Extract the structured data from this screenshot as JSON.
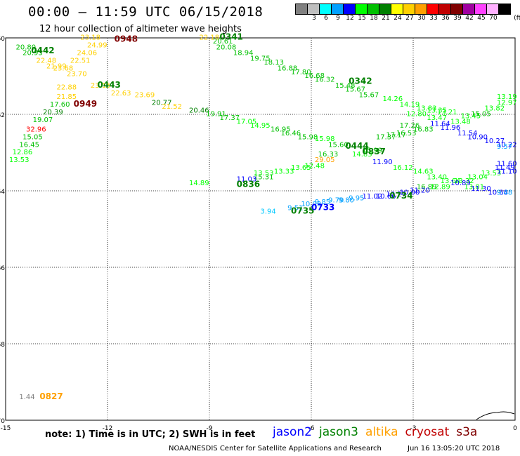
{
  "title": "00:00 – 11:59 UTC 06/15/2018",
  "subtitle": "12 hour collection of altimeter wave heights",
  "color_scale": {
    "unit_label": "(ft)",
    "bins": [
      {
        "label": "",
        "color": "#808080"
      },
      {
        "label": "3",
        "color": "#bfbfbf"
      },
      {
        "label": "6",
        "color": "#00ffff"
      },
      {
        "label": "9",
        "color": "#00a0ff"
      },
      {
        "label": "12",
        "color": "#0000ff"
      },
      {
        "label": "15",
        "color": "#00ff00"
      },
      {
        "label": "18",
        "color": "#00c000"
      },
      {
        "label": "21",
        "color": "#008000"
      },
      {
        "label": "24",
        "color": "#ffff00"
      },
      {
        "label": "27",
        "color": "#ffd000"
      },
      {
        "label": "30",
        "color": "#ffa000"
      },
      {
        "label": "33",
        "color": "#ff0000"
      },
      {
        "label": "36",
        "color": "#c00000"
      },
      {
        "label": "39",
        "color": "#800000"
      },
      {
        "label": "42",
        "color": "#a000a0"
      },
      {
        "label": "45",
        "color": "#ff40ff"
      },
      {
        "label": "70",
        "color": "#ffb0ff"
      },
      {
        "label": "",
        "color": "#000000"
      }
    ]
  },
  "map": {
    "lon_range": [
      -15,
      0
    ],
    "lat_range": [
      -70,
      -60
    ],
    "x_ticks": [
      -15,
      -12,
      -9,
      -6,
      -3,
      0
    ],
    "y_ticks": [
      -60,
      -62,
      -64,
      -66,
      -68,
      -70
    ],
    "grid": "dotted"
  },
  "chart_data": {
    "type": "scatter",
    "units": "ft",
    "points": [
      {
        "lon": -14.7,
        "lat": -60.3,
        "text": "20.80",
        "color": "#00c000"
      },
      {
        "lon": -14.5,
        "lat": -60.45,
        "text": "20.93",
        "color": "#00c000"
      },
      {
        "lon": -14.1,
        "lat": -60.65,
        "text": "22.48",
        "color": "#ffd000"
      },
      {
        "lon": -13.8,
        "lat": -60.8,
        "text": "21.99",
        "color": "#ffd000"
      },
      {
        "lon": -13.6,
        "lat": -60.85,
        "text": "23.68",
        "color": "#ffd000"
      },
      {
        "lon": -13.2,
        "lat": -61.0,
        "text": "23.70",
        "color": "#ffd000"
      },
      {
        "lon": -13.5,
        "lat": -61.35,
        "text": "22.88",
        "color": "#ffd000"
      },
      {
        "lon": -13.5,
        "lat": -61.6,
        "text": "21.85",
        "color": "#ffd000"
      },
      {
        "lon": -13.7,
        "lat": -61.8,
        "text": "17.60",
        "color": "#00c000"
      },
      {
        "lon": -13.9,
        "lat": -62.0,
        "text": "20.39",
        "color": "#008000"
      },
      {
        "lon": -14.2,
        "lat": -62.2,
        "text": "19.07",
        "color": "#00c000"
      },
      {
        "lon": -14.4,
        "lat": -62.45,
        "text": "32.96",
        "color": "#ff0000"
      },
      {
        "lon": -14.5,
        "lat": -62.65,
        "text": "15.05",
        "color": "#00c000"
      },
      {
        "lon": -14.6,
        "lat": -62.85,
        "text": "16.45",
        "color": "#00c000"
      },
      {
        "lon": -14.8,
        "lat": -63.05,
        "text": "12.86",
        "color": "#00ff00"
      },
      {
        "lon": -14.9,
        "lat": -63.25,
        "text": "13.53",
        "color": "#00ff00"
      },
      {
        "lon": -12.8,
        "lat": -60.05,
        "text": "23.18",
        "color": "#ffd000"
      },
      {
        "lon": -12.6,
        "lat": -60.25,
        "text": "24.99",
        "color": "#ffd000"
      },
      {
        "lon": -12.9,
        "lat": -60.45,
        "text": "24.06",
        "color": "#ffd000"
      },
      {
        "lon": -13.1,
        "lat": -60.65,
        "text": "22.51",
        "color": "#ffd000"
      },
      {
        "lon": -12.5,
        "lat": -61.3,
        "text": "23.15",
        "color": "#ffd000"
      },
      {
        "lon": -11.9,
        "lat": -61.5,
        "text": "22.63",
        "color": "#ffd000"
      },
      {
        "lon": -11.2,
        "lat": -61.55,
        "text": "23.69",
        "color": "#ffd000"
      },
      {
        "lon": -10.7,
        "lat": -61.75,
        "text": "20.77",
        "color": "#008000"
      },
      {
        "lon": -10.4,
        "lat": -61.85,
        "text": "21.52",
        "color": "#ffd000"
      },
      {
        "lon": -9.6,
        "lat": -61.95,
        "text": "20.46",
        "color": "#008000"
      },
      {
        "lon": -9.1,
        "lat": -62.05,
        "text": "19.91",
        "color": "#00c000"
      },
      {
        "lon": -8.7,
        "lat": -62.15,
        "text": "17.37",
        "color": "#00c000"
      },
      {
        "lon": -8.2,
        "lat": -62.25,
        "text": "17.05",
        "color": "#00ff00"
      },
      {
        "lon": -7.8,
        "lat": -62.35,
        "text": "14.95",
        "color": "#00ff00"
      },
      {
        "lon": -7.2,
        "lat": -62.45,
        "text": "16.95",
        "color": "#00c000"
      },
      {
        "lon": -6.9,
        "lat": -62.55,
        "text": "16.46",
        "color": "#00c000"
      },
      {
        "lon": -6.4,
        "lat": -62.65,
        "text": "15.98",
        "color": "#00c000"
      },
      {
        "lon": -5.9,
        "lat": -62.7,
        "text": "15.98",
        "color": "#00ff00"
      },
      {
        "lon": -5.5,
        "lat": -62.85,
        "text": "15.60",
        "color": "#00c000"
      },
      {
        "lon": -9.3,
        "lat": -60.05,
        "text": "22.18",
        "color": "#ffd000"
      },
      {
        "lon": -8.9,
        "lat": -60.15,
        "text": "20.61",
        "color": "#00c000"
      },
      {
        "lon": -8.8,
        "lat": -60.3,
        "text": "20.08",
        "color": "#00c000"
      },
      {
        "lon": -8.3,
        "lat": -60.45,
        "text": "18.94",
        "color": "#00c000"
      },
      {
        "lon": -7.8,
        "lat": -60.6,
        "text": "19.75",
        "color": "#00c000"
      },
      {
        "lon": -7.4,
        "lat": -60.7,
        "text": "18.13",
        "color": "#00c000"
      },
      {
        "lon": -7.0,
        "lat": -60.85,
        "text": "16.88",
        "color": "#00c000"
      },
      {
        "lon": -6.6,
        "lat": -60.95,
        "text": "17.80",
        "color": "#00c000"
      },
      {
        "lon": -6.2,
        "lat": -61.05,
        "text": "16.68",
        "color": "#00c000"
      },
      {
        "lon": -5.9,
        "lat": -61.15,
        "text": "16.32",
        "color": "#00c000"
      },
      {
        "lon": -5.3,
        "lat": -61.3,
        "text": "15.48",
        "color": "#00c000"
      },
      {
        "lon": -5.0,
        "lat": -61.4,
        "text": "15.67",
        "color": "#00c000"
      },
      {
        "lon": -4.6,
        "lat": -61.55,
        "text": "15.67",
        "color": "#00c000"
      },
      {
        "lon": -3.9,
        "lat": -61.65,
        "text": "14.26",
        "color": "#00ff00"
      },
      {
        "lon": -3.4,
        "lat": -61.8,
        "text": "14.19",
        "color": "#00ff00"
      },
      {
        "lon": -2.9,
        "lat": -61.9,
        "text": "13.83",
        "color": "#00ff00"
      },
      {
        "lon": -2.6,
        "lat": -61.95,
        "text": "13.35",
        "color": "#00ff00"
      },
      {
        "lon": -2.3,
        "lat": -62.0,
        "text": "13.21",
        "color": "#00ff00"
      },
      {
        "lon": -3.2,
        "lat": -62.05,
        "text": "12.80",
        "color": "#00ff00"
      },
      {
        "lon": -2.6,
        "lat": -62.15,
        "text": "13.47",
        "color": "#00ff00"
      },
      {
        "lon": -1.9,
        "lat": -62.25,
        "text": "13.48",
        "color": "#00ff00"
      },
      {
        "lon": -1.6,
        "lat": -62.1,
        "text": "13.45",
        "color": "#00ff00"
      },
      {
        "lon": -1.3,
        "lat": -62.05,
        "text": "15.05",
        "color": "#00c000"
      },
      {
        "lon": -0.9,
        "lat": -61.9,
        "text": "13.82",
        "color": "#00ff00"
      },
      {
        "lon": -0.5,
        "lat": -61.75,
        "text": "12.97",
        "color": "#00ff00"
      },
      {
        "lon": -0.2,
        "lat": -61.6,
        "text": "13.19",
        "color": "#00ff00"
      },
      {
        "lon": -3.4,
        "lat": -62.35,
        "text": "17.26",
        "color": "#00c000"
      },
      {
        "lon": -3.0,
        "lat": -62.45,
        "text": "16.83",
        "color": "#00c000"
      },
      {
        "lon": -4.1,
        "lat": -62.65,
        "text": "17.37",
        "color": "#00c000"
      },
      {
        "lon": -3.8,
        "lat": -62.6,
        "text": "17.17",
        "color": "#00c000"
      },
      {
        "lon": -3.5,
        "lat": -62.55,
        "text": "16.53",
        "color": "#00c000"
      },
      {
        "lon": -2.5,
        "lat": -62.3,
        "text": "11.64",
        "color": "#0000ff"
      },
      {
        "lon": -2.2,
        "lat": -62.4,
        "text": "11.96",
        "color": "#0000ff"
      },
      {
        "lon": -1.7,
        "lat": -62.55,
        "text": "11.54",
        "color": "#0000ff"
      },
      {
        "lon": -1.4,
        "lat": -62.65,
        "text": "10.90",
        "color": "#0000ff"
      },
      {
        "lon": -0.9,
        "lat": -62.75,
        "text": "10.27",
        "color": "#0000ff"
      },
      {
        "lon": -0.5,
        "lat": -62.85,
        "text": "10.22",
        "color": "#0000ff"
      },
      {
        "lon": -0.1,
        "lat": -62.9,
        "text": "9.57",
        "color": "#00a0ff"
      },
      {
        "lon": -4.5,
        "lat": -63.0,
        "text": "15.99",
        "color": "#00c000"
      },
      {
        "lon": -4.8,
        "lat": -63.1,
        "text": "14.83",
        "color": "#00ff00"
      },
      {
        "lon": -5.8,
        "lat": -63.1,
        "text": "16.33",
        "color": "#00c000"
      },
      {
        "lon": -4.2,
        "lat": -63.3,
        "text": "11.90",
        "color": "#0000ff"
      },
      {
        "lon": -3.6,
        "lat": -63.45,
        "text": "16.12",
        "color": "#00ff00"
      },
      {
        "lon": -3.0,
        "lat": -63.55,
        "text": "14.63",
        "color": "#00ff00"
      },
      {
        "lon": -2.6,
        "lat": -63.7,
        "text": "13.40",
        "color": "#00ff00"
      },
      {
        "lon": -2.2,
        "lat": -63.8,
        "text": "13.64",
        "color": "#00ff00"
      },
      {
        "lon": -1.8,
        "lat": -63.8,
        "text": "13.32",
        "color": "#00ff00"
      },
      {
        "lon": -1.4,
        "lat": -63.7,
        "text": "13.04",
        "color": "#00ff00"
      },
      {
        "lon": -1.0,
        "lat": -63.6,
        "text": "13.53",
        "color": "#00ff00"
      },
      {
        "lon": -0.6,
        "lat": -63.45,
        "text": "11.49",
        "color": "#0000ff"
      },
      {
        "lon": -0.2,
        "lat": -63.35,
        "text": "11.60",
        "color": "#0000ff"
      },
      {
        "lon": -0.1,
        "lat": -63.55,
        "text": "11.10",
        "color": "#0000ff"
      },
      {
        "lon": -2.9,
        "lat": -63.95,
        "text": "16.89",
        "color": "#00c000"
      },
      {
        "lon": -2.5,
        "lat": -63.95,
        "text": "12.89",
        "color": "#00ff00"
      },
      {
        "lon": -1.9,
        "lat": -63.85,
        "text": "10.89",
        "color": "#0000ff"
      },
      {
        "lon": -1.5,
        "lat": -63.95,
        "text": "13.01",
        "color": "#00ff00"
      },
      {
        "lon": -1.3,
        "lat": -64.0,
        "text": "11.30",
        "color": "#0000ff"
      },
      {
        "lon": -0.8,
        "lat": -64.1,
        "text": "10.88",
        "color": "#0000ff"
      },
      {
        "lon": -0.3,
        "lat": -64.1,
        "text": "9.48",
        "color": "#00a0ff"
      },
      {
        "lon": -7.1,
        "lat": -63.55,
        "text": "13.33",
        "color": "#00ff00"
      },
      {
        "lon": -6.6,
        "lat": -63.45,
        "text": "13.65",
        "color": "#00ff00"
      },
      {
        "lon": -6.2,
        "lat": -63.4,
        "text": "12.48",
        "color": "#00ff00"
      },
      {
        "lon": -5.9,
        "lat": -63.25,
        "text": "29.05",
        "color": "#ffa000"
      },
      {
        "lon": -7.7,
        "lat": -63.7,
        "text": "15.31",
        "color": "#00c000"
      },
      {
        "lon": -8.2,
        "lat": -63.75,
        "text": "11.03",
        "color": "#0000ff"
      },
      {
        "lon": -9.6,
        "lat": -63.85,
        "text": "14.89",
        "color": "#00ff00"
      },
      {
        "lon": -7.7,
        "lat": -63.6,
        "text": "13.53",
        "color": "#00ff00"
      },
      {
        "lon": -7.5,
        "lat": -64.6,
        "text": "3.94",
        "color": "#00c8ff"
      },
      {
        "lon": -6.7,
        "lat": -64.5,
        "text": "9.51",
        "color": "#00a0ff"
      },
      {
        "lon": -6.3,
        "lat": -64.4,
        "text": "10.03",
        "color": "#00a0ff"
      },
      {
        "lon": -5.9,
        "lat": -64.35,
        "text": "9.85",
        "color": "#00a0ff"
      },
      {
        "lon": -5.5,
        "lat": -64.3,
        "text": "9.79",
        "color": "#00a0ff"
      },
      {
        "lon": -5.2,
        "lat": -64.3,
        "text": "9.80",
        "color": "#00a0ff"
      },
      {
        "lon": -4.9,
        "lat": -64.25,
        "text": "9.95",
        "color": "#00a0ff"
      },
      {
        "lon": -4.5,
        "lat": -64.2,
        "text": "11.02",
        "color": "#0000ff"
      },
      {
        "lon": -4.1,
        "lat": -64.2,
        "text": "10.66",
        "color": "#0000ff"
      },
      {
        "lon": -3.8,
        "lat": -64.15,
        "text": "10.27",
        "color": "#0000ff"
      },
      {
        "lon": -3.4,
        "lat": -64.1,
        "text": "10.00",
        "color": "#0000ff"
      },
      {
        "lon": -3.1,
        "lat": -64.05,
        "text": "11.20",
        "color": "#0000ff"
      },
      {
        "lon": -14.6,
        "lat": -69.45,
        "text": "1.44",
        "color": "#808080"
      }
    ],
    "time_labels": [
      {
        "lon": -14.25,
        "lat": -60.4,
        "text": "0442",
        "color": "#008000"
      },
      {
        "lon": -11.8,
        "lat": -60.1,
        "text": "0948",
        "color": "#800000"
      },
      {
        "lon": -8.7,
        "lat": -60.05,
        "text": "0341",
        "color": "#008000"
      },
      {
        "lon": -12.3,
        "lat": -61.3,
        "text": "0443",
        "color": "#008000"
      },
      {
        "lon": -13.0,
        "lat": -61.8,
        "text": "0949",
        "color": "#800000"
      },
      {
        "lon": -4.9,
        "lat": -61.2,
        "text": "0342",
        "color": "#008000"
      },
      {
        "lon": -5.0,
        "lat": -62.9,
        "text": "0444",
        "color": "#008000"
      },
      {
        "lon": -4.5,
        "lat": -63.05,
        "text": "0837",
        "color": "#008000"
      },
      {
        "lon": -8.2,
        "lat": -63.9,
        "text": "0836",
        "color": "#008000"
      },
      {
        "lon": -6.6,
        "lat": -64.6,
        "text": "0735",
        "color": "#008000"
      },
      {
        "lon": -6.0,
        "lat": -64.5,
        "text": "0733",
        "color": "#0000ff"
      },
      {
        "lon": -3.7,
        "lat": -64.2,
        "text": "0734",
        "color": "#008000"
      },
      {
        "lon": -14.0,
        "lat": -69.45,
        "text": "0827",
        "color": "#ffa000"
      }
    ]
  },
  "note": "note:  1) Time is in UTC;  2) SWH is in feet",
  "legend": [
    {
      "name": "jason2",
      "color": "#0000ff"
    },
    {
      "name": "jason3",
      "color": "#008000"
    },
    {
      "name": "altika",
      "color": "#ffa000"
    },
    {
      "name": "cryosat",
      "color": "#c00000"
    },
    {
      "name": "s3a",
      "color": "#800000"
    }
  ],
  "credit": "NOAA/NESDIS Center for Satellite Applications and Research",
  "timestamp": "Jun 16 13:05:20 UTC 2018"
}
